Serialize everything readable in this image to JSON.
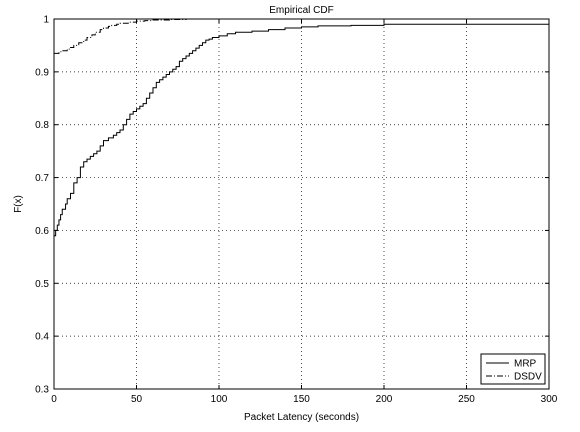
{
  "chart_data": {
    "type": "line",
    "title": "Empirical CDF",
    "xlabel": "Packet Latency (seconds)",
    "ylabel": "F(x)",
    "xlim": [
      0,
      300
    ],
    "ylim": [
      0.3,
      1.0
    ],
    "xticks": [
      0,
      50,
      100,
      150,
      200,
      250,
      300
    ],
    "yticks": [
      0.3,
      0.4,
      0.5,
      0.6,
      0.7,
      0.8,
      0.9,
      1.0
    ],
    "xtick_labels": [
      "0",
      "50",
      "100",
      "150",
      "200",
      "250",
      "300"
    ],
    "ytick_labels": [
      "0.3",
      "0.4",
      "0.5",
      "0.6",
      "0.7",
      "0.8",
      "0.9",
      "1"
    ],
    "grid": true,
    "grid_style": "dotted",
    "legend_position": "bottom-right",
    "series": [
      {
        "name": "MRP",
        "style": "solid",
        "color": "#000000",
        "x": [
          0,
          1,
          2,
          3,
          4,
          5,
          7,
          8,
          10,
          12,
          14,
          16,
          18,
          20,
          22,
          24,
          26,
          28,
          30,
          33,
          36,
          38,
          40,
          42,
          44,
          46,
          48,
          50,
          52,
          54,
          56,
          58,
          60,
          62,
          64,
          66,
          68,
          70,
          72,
          74,
          76,
          78,
          80,
          82,
          84,
          86,
          88,
          90,
          92,
          94,
          96,
          100,
          105,
          110,
          120,
          130,
          140,
          150,
          160,
          180,
          200,
          230,
          260,
          300
        ],
        "y": [
          0.59,
          0.6,
          0.61,
          0.62,
          0.63,
          0.64,
          0.65,
          0.66,
          0.67,
          0.69,
          0.7,
          0.72,
          0.73,
          0.735,
          0.74,
          0.745,
          0.75,
          0.76,
          0.77,
          0.775,
          0.78,
          0.785,
          0.79,
          0.8,
          0.81,
          0.82,
          0.825,
          0.83,
          0.835,
          0.84,
          0.85,
          0.86,
          0.87,
          0.88,
          0.885,
          0.89,
          0.895,
          0.9,
          0.905,
          0.91,
          0.92,
          0.925,
          0.93,
          0.935,
          0.94,
          0.945,
          0.95,
          0.955,
          0.96,
          0.962,
          0.965,
          0.968,
          0.972,
          0.975,
          0.977,
          0.98,
          0.983,
          0.985,
          0.987,
          0.988,
          0.99,
          0.99,
          0.99,
          0.99
        ]
      },
      {
        "name": "DSDV",
        "style": "dashdot",
        "color": "#000000",
        "x": [
          0,
          3,
          5,
          8,
          10,
          12,
          15,
          18,
          20,
          23,
          25,
          28,
          30,
          33,
          35,
          38,
          40,
          45,
          50,
          55,
          60,
          70,
          80,
          90
        ],
        "y": [
          0.935,
          0.938,
          0.94,
          0.943,
          0.946,
          0.95,
          0.955,
          0.96,
          0.965,
          0.97,
          0.975,
          0.98,
          0.983,
          0.986,
          0.988,
          0.99,
          0.992,
          0.994,
          0.996,
          0.997,
          0.998,
          0.999,
          1.0,
          1.0
        ]
      }
    ]
  }
}
